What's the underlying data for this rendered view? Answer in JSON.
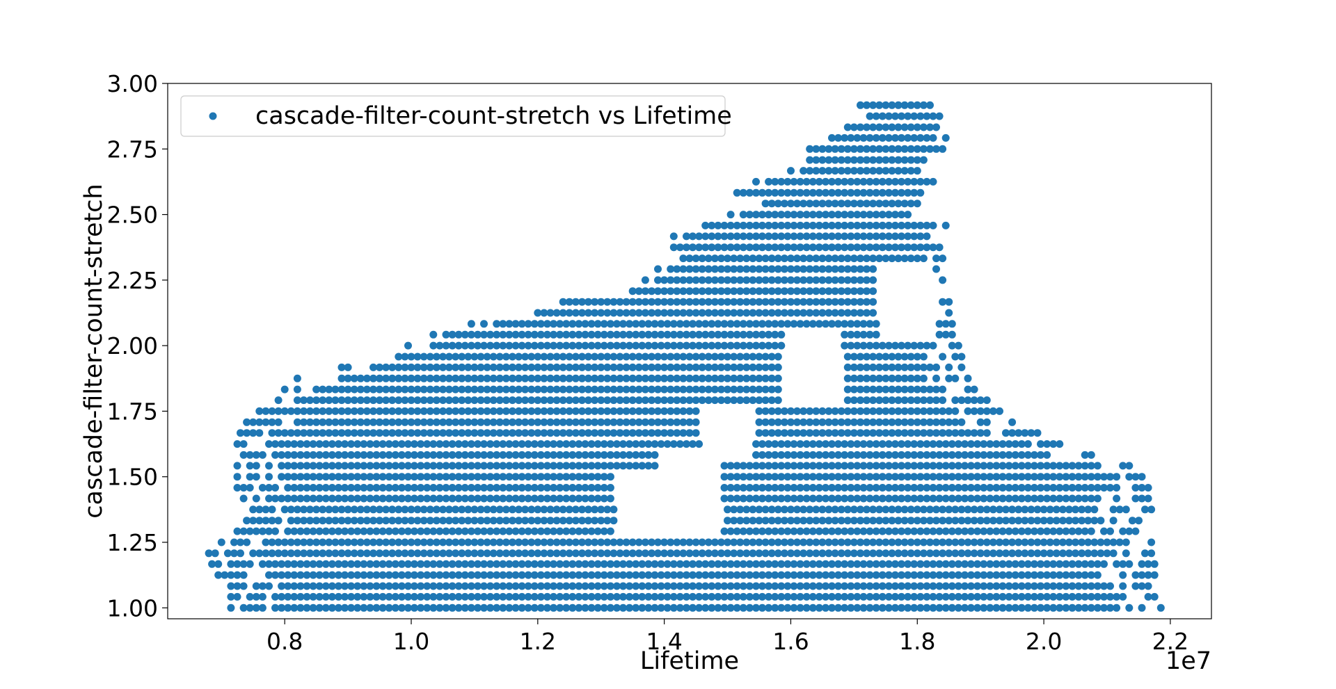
{
  "chart_data": {
    "type": "scatter",
    "title": "",
    "xlabel": "Lifetime",
    "ylabel": "cascade-filter-count-stretch",
    "x_offset_label": "1e7",
    "xlim": [
      6150000,
      22650000
    ],
    "ylim": [
      0.9583,
      3.0
    ],
    "x_ticks": [
      0.8,
      1.0,
      1.2,
      1.4,
      1.6,
      1.8,
      2.0,
      2.2
    ],
    "x_tick_labels": [
      "0.8",
      "1.0",
      "1.2",
      "1.4",
      "1.6",
      "1.8",
      "2.0",
      "2.2"
    ],
    "y_ticks": [
      1.0,
      1.25,
      1.5,
      1.75,
      2.0,
      2.25,
      2.5,
      2.75,
      3.0
    ],
    "y_tick_labels": [
      "1.00",
      "1.25",
      "1.50",
      "1.75",
      "2.00",
      "2.25",
      "2.50",
      "2.75",
      "3.00"
    ],
    "grid": false,
    "legend_position": "upper-left",
    "marker_color": "#1f77b4",
    "series": [
      {
        "name": "cascade-filter-count-stretch vs Lifetime",
        "x_step": 100000,
        "y_step": 0.04167,
        "bands": [
          {
            "y": 1.0,
            "x_from": 7150000,
            "x_to": 21850000
          },
          {
            "y": 1.042,
            "x_from": 7150000,
            "x_to": 21800000
          },
          {
            "y": 1.083,
            "x_from": 7150000,
            "x_to": 21800000
          },
          {
            "y": 1.125,
            "x_from": 6950000,
            "x_to": 21750000
          },
          {
            "y": 1.167,
            "x_from": 6850000,
            "x_to": 21750000
          },
          {
            "y": 1.208,
            "x_from": 6800000,
            "x_to": 21700000
          },
          {
            "y": 1.25,
            "x_from": 6900000,
            "x_to": 21700000
          },
          {
            "y": 1.292,
            "x_from": 7250000,
            "x_to": 21700000
          },
          {
            "y": 1.333,
            "x_from": 7300000,
            "x_to": 21700000
          },
          {
            "y": 1.375,
            "x_from": 7300000,
            "x_to": 21700000
          },
          {
            "y": 1.417,
            "x_from": 7250000,
            "x_to": 21650000
          },
          {
            "y": 1.458,
            "x_from": 7250000,
            "x_to": 21650000
          },
          {
            "y": 1.5,
            "x_from": 7250000,
            "x_to": 21600000
          },
          {
            "y": 1.542,
            "x_from": 7250000,
            "x_to": 21450000
          },
          {
            "y": 1.583,
            "x_from": 7250000,
            "x_to": 20950000
          },
          {
            "y": 1.625,
            "x_from": 7250000,
            "x_to": 20450000
          },
          {
            "y": 1.667,
            "x_from": 7300000,
            "x_to": 19900000
          },
          {
            "y": 1.708,
            "x_from": 7400000,
            "x_to": 19500000
          },
          {
            "y": 1.75,
            "x_from": 7600000,
            "x_to": 19300000
          },
          {
            "y": 1.792,
            "x_from": 7800000,
            "x_to": 19100000
          },
          {
            "y": 1.833,
            "x_from": 8000000,
            "x_to": 18950000
          },
          {
            "y": 1.875,
            "x_from": 8200000,
            "x_to": 18800000
          },
          {
            "y": 1.917,
            "x_from": 8900000,
            "x_to": 18750000
          },
          {
            "y": 1.958,
            "x_from": 9500000,
            "x_to": 18700000
          },
          {
            "y": 2.0,
            "x_from": 9950000,
            "x_to": 18650000
          },
          {
            "y": 2.042,
            "x_from": 10350000,
            "x_to": 18550000
          },
          {
            "y": 2.083,
            "x_from": 10950000,
            "x_to": 18550000
          },
          {
            "y": 2.125,
            "x_from": 11900000,
            "x_to": 18550000
          },
          {
            "y": 2.167,
            "x_from": 12400000,
            "x_to": 18500000
          },
          {
            "y": 2.208,
            "x_from": 13200000,
            "x_to": 18450000
          },
          {
            "y": 2.25,
            "x_from": 13600000,
            "x_to": 18450000
          },
          {
            "y": 2.292,
            "x_from": 13800000,
            "x_to": 18450000
          },
          {
            "y": 2.333,
            "x_from": 14000000,
            "x_to": 18450000
          },
          {
            "y": 2.375,
            "x_from": 14150000,
            "x_to": 18450000
          },
          {
            "y": 2.417,
            "x_from": 14150000,
            "x_to": 18450000
          },
          {
            "y": 2.458,
            "x_from": 14650000,
            "x_to": 18450000
          },
          {
            "y": 2.5,
            "x_from": 15050000,
            "x_to": 18000000
          },
          {
            "y": 2.542,
            "x_from": 15400000,
            "x_to": 18200000
          },
          {
            "y": 2.583,
            "x_from": 14950000,
            "x_to": 18100000
          },
          {
            "y": 2.625,
            "x_from": 15450000,
            "x_to": 18350000
          },
          {
            "y": 2.667,
            "x_from": 16000000,
            "x_to": 18200000
          },
          {
            "y": 2.708,
            "x_from": 16100000,
            "x_to": 18250000
          },
          {
            "y": 2.75,
            "x_from": 16300000,
            "x_to": 18450000
          },
          {
            "y": 2.792,
            "x_from": 16550000,
            "x_to": 18450000
          },
          {
            "y": 2.833,
            "x_from": 16800000,
            "x_to": 18450000
          },
          {
            "y": 2.875,
            "x_from": 17150000,
            "x_to": 18350000
          },
          {
            "y": 2.917,
            "x_from": 17100000,
            "x_to": 18350000
          }
        ],
        "gaps": [
          {
            "x_from": 13250000,
            "x_to": 13950000,
            "y_from": 1.27,
            "y_to": 1.5
          },
          {
            "x_from": 13900000,
            "x_to": 14900000,
            "y_from": 1.28,
            "y_to": 1.62
          },
          {
            "x_from": 14600000,
            "x_to": 15400000,
            "y_from": 1.55,
            "y_to": 1.78
          },
          {
            "x_from": 15900000,
            "x_to": 16800000,
            "y_from": 1.78,
            "y_to": 2.05
          },
          {
            "x_from": 17400000,
            "x_to": 18200000,
            "y_from": 2.02,
            "y_to": 2.32
          }
        ]
      }
    ]
  }
}
